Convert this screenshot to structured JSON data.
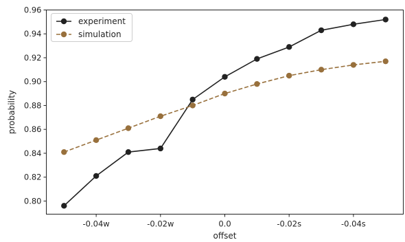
{
  "chart_data": {
    "type": "line",
    "title": "",
    "xlabel": "offset",
    "ylabel": "probability",
    "x": [
      -5,
      -4,
      -3,
      -2,
      -1,
      0,
      1,
      2,
      3,
      4,
      5
    ],
    "x_tick_positions": [
      -4,
      -2,
      0,
      2,
      4
    ],
    "x_tick_labels": [
      "-0.04w",
      "-0.02w",
      "0.0",
      "-0.02s",
      "-0.04s"
    ],
    "y_ticks": [
      0.8,
      0.82,
      0.84,
      0.86,
      0.88,
      0.9,
      0.92,
      0.94,
      0.96
    ],
    "y_tick_labels": [
      "0.80",
      "0.82",
      "0.84",
      "0.86",
      "0.88",
      "0.90",
      "0.92",
      "0.94",
      "0.96"
    ],
    "xlim": [
      -5.55,
      5.55
    ],
    "ylim": [
      0.789,
      0.96
    ],
    "grid": false,
    "legend_position": "top-left",
    "series": [
      {
        "name": "experiment",
        "color": "#222222",
        "dash": "solid",
        "values": [
          0.796,
          0.821,
          0.841,
          0.844,
          0.885,
          0.904,
          0.919,
          0.929,
          0.943,
          0.948,
          0.952
        ]
      },
      {
        "name": "simulation",
        "color": "#98703c",
        "dash": "dashed",
        "values": [
          0.841,
          0.851,
          0.861,
          0.871,
          0.88,
          0.89,
          0.898,
          0.905,
          0.91,
          0.914,
          0.917
        ]
      }
    ]
  }
}
